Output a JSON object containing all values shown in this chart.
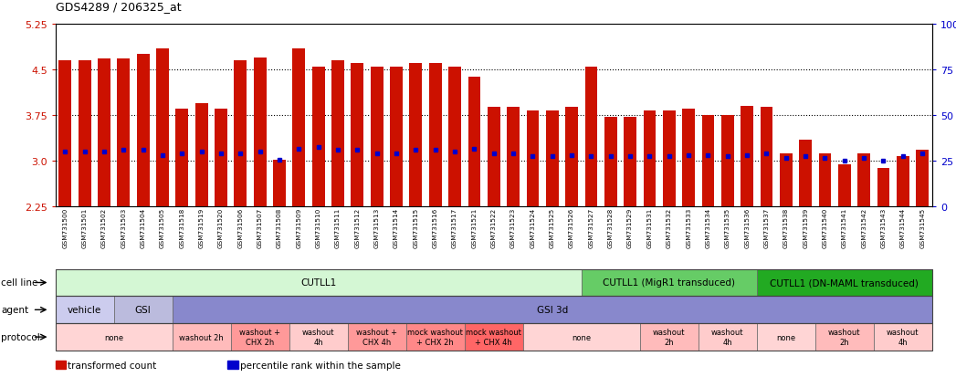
{
  "title": "GDS4289 / 206325_at",
  "bar_color": "#cc1100",
  "marker_color": "#0000cc",
  "ylim": [
    2.25,
    5.25
  ],
  "yticks": [
    2.25,
    3.0,
    3.75,
    4.5,
    5.25
  ],
  "right_yticks": [
    0,
    25,
    50,
    75,
    100
  ],
  "samples": [
    "GSM731500",
    "GSM731501",
    "GSM731502",
    "GSM731503",
    "GSM731504",
    "GSM731505",
    "GSM731518",
    "GSM731519",
    "GSM731520",
    "GSM731506",
    "GSM731507",
    "GSM731508",
    "GSM731509",
    "GSM731510",
    "GSM731511",
    "GSM731512",
    "GSM731513",
    "GSM731514",
    "GSM731515",
    "GSM731516",
    "GSM731517",
    "GSM731521",
    "GSM731522",
    "GSM731523",
    "GSM731524",
    "GSM731525",
    "GSM731526",
    "GSM731527",
    "GSM731528",
    "GSM731529",
    "GSM731531",
    "GSM731532",
    "GSM731533",
    "GSM731534",
    "GSM731535",
    "GSM731536",
    "GSM731537",
    "GSM731538",
    "GSM731539",
    "GSM731540",
    "GSM731541",
    "GSM731542",
    "GSM731543",
    "GSM731544",
    "GSM731545"
  ],
  "bar_heights": [
    4.65,
    4.65,
    4.68,
    4.68,
    4.75,
    4.85,
    3.85,
    3.95,
    3.85,
    4.65,
    4.7,
    3.02,
    4.85,
    4.55,
    4.65,
    4.6,
    4.55,
    4.55,
    4.6,
    4.6,
    4.55,
    4.38,
    3.88,
    3.88,
    3.82,
    3.82,
    3.88,
    4.55,
    3.72,
    3.72,
    3.82,
    3.82,
    3.85,
    3.75,
    3.75,
    3.9,
    3.88,
    3.12,
    3.35,
    3.12,
    2.95,
    3.12,
    2.88,
    3.08,
    3.18
  ],
  "marker_heights": [
    3.15,
    3.15,
    3.15,
    3.18,
    3.18,
    3.1,
    3.12,
    3.15,
    3.12,
    3.12,
    3.15,
    3.02,
    3.2,
    3.22,
    3.18,
    3.18,
    3.12,
    3.12,
    3.18,
    3.18,
    3.15,
    3.2,
    3.12,
    3.12,
    3.08,
    3.08,
    3.1,
    3.08,
    3.08,
    3.08,
    3.08,
    3.08,
    3.1,
    3.1,
    3.08,
    3.1,
    3.12,
    3.05,
    3.08,
    3.05,
    3.0,
    3.05,
    3.0,
    3.08,
    3.12
  ],
  "cell_line_groups": [
    {
      "label": "CUTLL1",
      "start": 0,
      "end": 27,
      "color": "#d4f7d4"
    },
    {
      "label": "CUTLL1 (MigR1 transduced)",
      "start": 27,
      "end": 36,
      "color": "#66cc66"
    },
    {
      "label": "CUTLL1 (DN-MAML transduced)",
      "start": 36,
      "end": 45,
      "color": "#22aa22"
    }
  ],
  "agent_groups": [
    {
      "label": "vehicle",
      "start": 0,
      "end": 3,
      "color": "#ccccee"
    },
    {
      "label": "GSI",
      "start": 3,
      "end": 6,
      "color": "#bbbbdd"
    },
    {
      "label": "GSI 3d",
      "start": 6,
      "end": 45,
      "color": "#8888cc"
    }
  ],
  "protocol_groups": [
    {
      "label": "none",
      "start": 0,
      "end": 6,
      "color": "#ffd5d5"
    },
    {
      "label": "washout 2h",
      "start": 6,
      "end": 9,
      "color": "#ffbbbb"
    },
    {
      "label": "washout +\nCHX 2h",
      "start": 9,
      "end": 12,
      "color": "#ff9999"
    },
    {
      "label": "washout\n4h",
      "start": 12,
      "end": 15,
      "color": "#ffcccc"
    },
    {
      "label": "washout +\nCHX 4h",
      "start": 15,
      "end": 18,
      "color": "#ff9999"
    },
    {
      "label": "mock washout\n+ CHX 2h",
      "start": 18,
      "end": 21,
      "color": "#ff8888"
    },
    {
      "label": "mock washout\n+ CHX 4h",
      "start": 21,
      "end": 24,
      "color": "#ff6666"
    },
    {
      "label": "none",
      "start": 24,
      "end": 30,
      "color": "#ffd5d5"
    },
    {
      "label": "washout\n2h",
      "start": 30,
      "end": 33,
      "color": "#ffbbbb"
    },
    {
      "label": "washout\n4h",
      "start": 33,
      "end": 36,
      "color": "#ffcccc"
    },
    {
      "label": "none",
      "start": 36,
      "end": 39,
      "color": "#ffd5d5"
    },
    {
      "label": "washout\n2h",
      "start": 39,
      "end": 42,
      "color": "#ffbbbb"
    },
    {
      "label": "washout\n4h",
      "start": 42,
      "end": 45,
      "color": "#ffcccc"
    }
  ],
  "legend_items": [
    {
      "color": "#cc1100",
      "label": "transformed count"
    },
    {
      "color": "#0000cc",
      "label": "percentile rank within the sample"
    }
  ]
}
